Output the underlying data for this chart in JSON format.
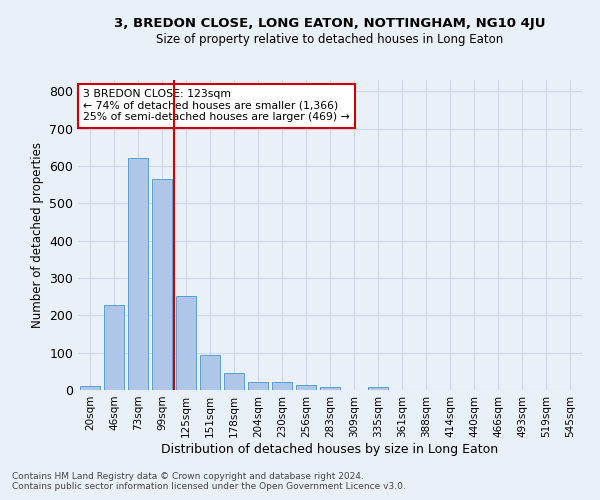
{
  "title": "3, BREDON CLOSE, LONG EATON, NOTTINGHAM, NG10 4JU",
  "subtitle": "Size of property relative to detached houses in Long Eaton",
  "xlabel": "Distribution of detached houses by size in Long Eaton",
  "ylabel": "Number of detached properties",
  "footnote1": "Contains HM Land Registry data © Crown copyright and database right 2024.",
  "footnote2": "Contains public sector information licensed under the Open Government Licence v3.0.",
  "bar_labels": [
    "20sqm",
    "46sqm",
    "73sqm",
    "99sqm",
    "125sqm",
    "151sqm",
    "178sqm",
    "204sqm",
    "230sqm",
    "256sqm",
    "283sqm",
    "309sqm",
    "335sqm",
    "361sqm",
    "388sqm",
    "414sqm",
    "440sqm",
    "466sqm",
    "493sqm",
    "519sqm",
    "545sqm"
  ],
  "bar_values": [
    10,
    228,
    620,
    565,
    252,
    95,
    45,
    22,
    22,
    14,
    7,
    0,
    7,
    0,
    0,
    0,
    0,
    0,
    0,
    0,
    0
  ],
  "bar_color": "#aec6e8",
  "bar_edge_color": "#5a9fd4",
  "grid_color": "#d0d8e8",
  "background_color": "#eaf0f8",
  "vline_color": "#cc0000",
  "annotation_text": "3 BREDON CLOSE: 123sqm\n← 74% of detached houses are smaller (1,366)\n25% of semi-detached houses are larger (469) →",
  "annotation_box_color": "#cc0000",
  "ylim": [
    0,
    830
  ],
  "yticks": [
    0,
    100,
    200,
    300,
    400,
    500,
    600,
    700,
    800
  ],
  "vline_index": 3.5
}
